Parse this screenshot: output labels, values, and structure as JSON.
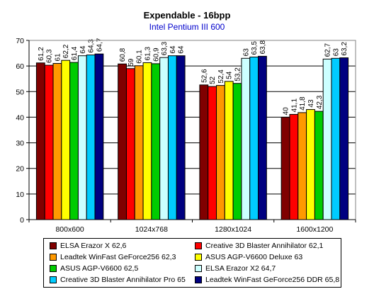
{
  "chart_data": {
    "type": "bar",
    "title": "Expendable - 16bpp",
    "subtitle": "Intel Pentium III 600",
    "categories": [
      "800x600",
      "1024x768",
      "1280x1024",
      "1600x1200"
    ],
    "ylim": [
      0,
      70
    ],
    "yticks": [
      "0",
      "10",
      "20",
      "30",
      "40",
      "50",
      "60",
      "70"
    ],
    "grid": true,
    "legend_position": "bottom",
    "series": [
      {
        "name": "ELSA Erazor X 62,6",
        "color": "#800000",
        "values": [
          61.2,
          60.8,
          52.6,
          40
        ],
        "labels": [
          "61,2",
          "60,8",
          "52,6",
          "40"
        ]
      },
      {
        "name": "Creative 3D Blaster Annihilator 62,1",
        "color": "#ff0000",
        "values": [
          60.3,
          59,
          52,
          41.1
        ],
        "labels": [
          "60,3",
          "59",
          "52",
          "41,1"
        ]
      },
      {
        "name": "Leadtek WinFast GeForce256 62,3",
        "color": "#ff9900",
        "values": [
          61,
          60.1,
          52.4,
          41.8
        ],
        "labels": [
          "61",
          "60,1",
          "52,4",
          "41,8"
        ]
      },
      {
        "name": "ASUS AGP-V6600 Deluxe 63",
        "color": "#ffff00",
        "values": [
          62.2,
          61.3,
          54,
          43
        ],
        "labels": [
          "62,2",
          "61,3",
          "54",
          "43"
        ]
      },
      {
        "name": "ASUS AGP-V6600 62,5",
        "color": "#00cc00",
        "values": [
          61.4,
          60.9,
          53.2,
          42.3
        ],
        "labels": [
          "61,4",
          "60,9",
          "53,2",
          "42,3"
        ]
      },
      {
        "name": "ELSA Erazor X2 64,7",
        "color": "#ccffff",
        "values": [
          64,
          63.3,
          63,
          62.7
        ],
        "labels": [
          "64",
          "63,3",
          "63",
          "62,7"
        ]
      },
      {
        "name": "Creative 3D Blaster Annihilator Pro 65",
        "color": "#00ccff",
        "values": [
          64.3,
          64,
          63.5,
          63
        ],
        "labels": [
          "64,3",
          "64",
          "63,5",
          "63"
        ]
      },
      {
        "name": "Leadtek WinFast GeForce256 DDR 65,8",
        "color": "#000080",
        "values": [
          64.7,
          64,
          63.8,
          63.2
        ],
        "labels": [
          "64,7",
          "64",
          "63,8",
          "63,2"
        ]
      }
    ]
  }
}
